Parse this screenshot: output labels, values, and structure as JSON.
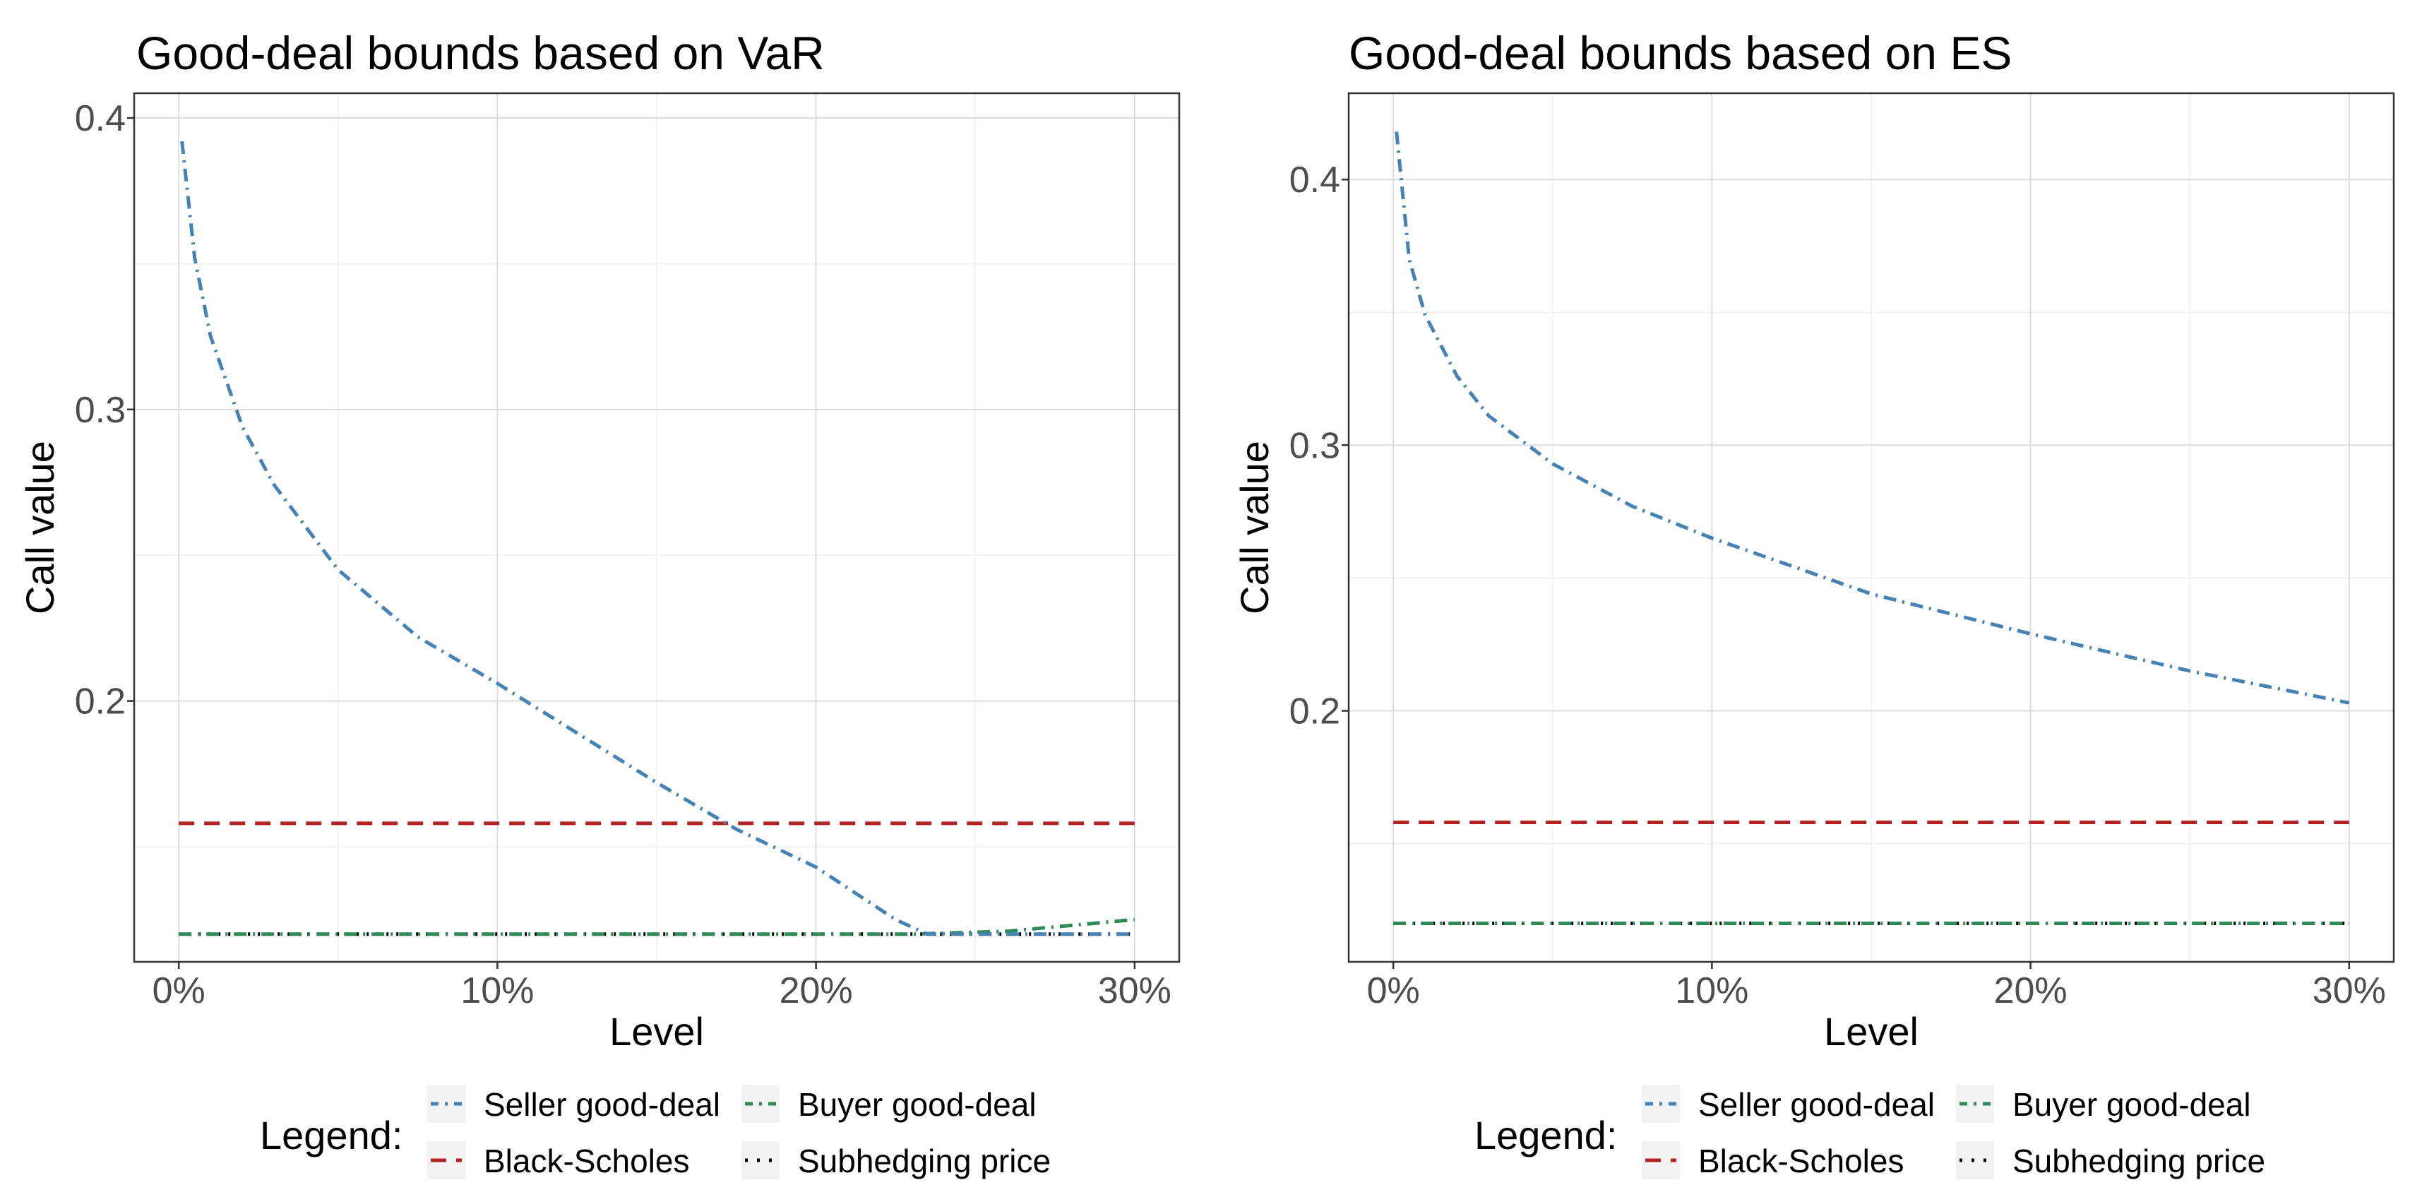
{
  "chart_data": [
    {
      "type": "line",
      "title": "Good-deal bounds based on VaR",
      "xlabel": "Level",
      "ylabel": "Call value",
      "xlim": [
        -0.014,
        0.314
      ],
      "ylim": [
        0.1105,
        0.4085
      ],
      "grid": true,
      "x_ticks": [
        0,
        0.1,
        0.2,
        0.3
      ],
      "x_tick_labels": [
        "0%",
        "10%",
        "20%",
        "30%"
      ],
      "y_ticks": [
        0.2,
        0.3,
        0.4
      ],
      "y_tick_labels": [
        "0.2",
        "0.3",
        "0.4"
      ],
      "legend_title": "Legend:",
      "legend_position": "bottom",
      "series": [
        {
          "name": "Seller good-deal",
          "color": "#4682B4",
          "dash": "dashdot",
          "x": [
            0.001,
            0.005,
            0.01,
            0.02,
            0.03,
            0.05,
            0.075,
            0.1,
            0.125,
            0.15,
            0.175,
            0.2,
            0.225,
            0.235,
            0.25,
            0.3
          ],
          "y": [
            0.392,
            0.352,
            0.325,
            0.294,
            0.274,
            0.245,
            0.222,
            0.206,
            0.189,
            0.172,
            0.156,
            0.143,
            0.125,
            0.12,
            0.12,
            0.12
          ]
        },
        {
          "name": "Black-Scholes",
          "color": "#B22222",
          "dash": "dashed",
          "x": [
            0,
            0.3
          ],
          "y": [
            0.158,
            0.158
          ]
        },
        {
          "name": "Buyer good-deal",
          "color": "#2E8B57",
          "dash": "dashdot",
          "x": [
            0,
            0.23,
            0.26,
            0.3
          ],
          "y": [
            0.12,
            0.12,
            0.121,
            0.125
          ]
        },
        {
          "name": "Subhedging price",
          "color": "#000000",
          "dash": "dotted",
          "x": [
            0,
            0.3
          ],
          "y": [
            0.12,
            0.12
          ]
        }
      ]
    },
    {
      "type": "line",
      "title": "Good-deal bounds based on ES",
      "xlabel": "Level",
      "ylabel": "Call value",
      "xlim": [
        -0.014,
        0.314
      ],
      "ylim": [
        0.1055,
        0.4325
      ],
      "grid": true,
      "x_ticks": [
        0,
        0.1,
        0.2,
        0.3
      ],
      "x_tick_labels": [
        "0%",
        "10%",
        "20%",
        "30%"
      ],
      "y_ticks": [
        0.2,
        0.3,
        0.4
      ],
      "y_tick_labels": [
        "0.2",
        "0.3",
        "0.4"
      ],
      "legend_title": "Legend:",
      "legend_position": "bottom",
      "series": [
        {
          "name": "Seller good-deal",
          "color": "#4682B4",
          "dash": "dashdot",
          "x": [
            0.001,
            0.005,
            0.01,
            0.02,
            0.03,
            0.05,
            0.075,
            0.1,
            0.15,
            0.2,
            0.25,
            0.3
          ],
          "y": [
            0.418,
            0.37,
            0.349,
            0.326,
            0.311,
            0.293,
            0.277,
            0.265,
            0.244,
            0.229,
            0.215,
            0.203
          ]
        },
        {
          "name": "Black-Scholes",
          "color": "#B22222",
          "dash": "dashed",
          "x": [
            0,
            0.3
          ],
          "y": [
            0.158,
            0.158
          ]
        },
        {
          "name": "Buyer good-deal",
          "color": "#2E8B57",
          "dash": "dashdot",
          "x": [
            0,
            0.3
          ],
          "y": [
            0.12,
            0.12
          ]
        },
        {
          "name": "Subhedging price",
          "color": "#000000",
          "dash": "dotted",
          "x": [
            0,
            0.3
          ],
          "y": [
            0.12,
            0.12
          ]
        }
      ]
    }
  ]
}
